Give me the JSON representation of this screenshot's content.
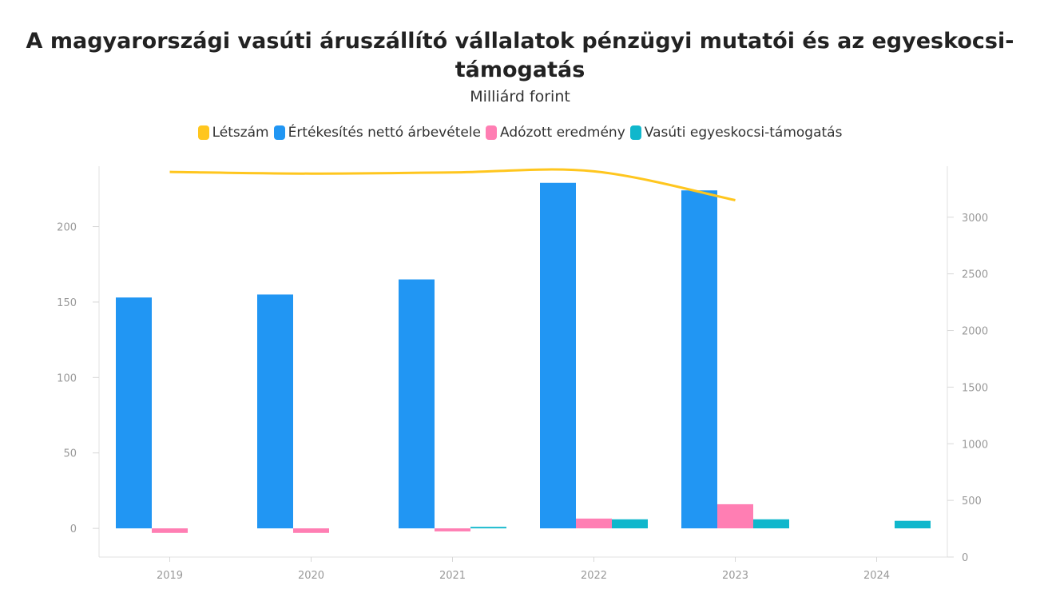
{
  "chart_data": {
    "type": "bar",
    "title": "A magyarországi vasúti áruszállító vállalatok pénzügyi mutatói és az egyeskocsi-támogatás",
    "subtitle": "Milliárd forint",
    "categories": [
      "2019",
      "2020",
      "2021",
      "2022",
      "2023",
      "2024"
    ],
    "series": [
      {
        "name": "Létszám",
        "kind": "line",
        "axis": "right",
        "color": "#FFC61E",
        "values": [
          3400,
          3385,
          3395,
          3405,
          3150,
          null
        ]
      },
      {
        "name": "Értékesítés nettó árbevétele",
        "kind": "bar",
        "axis": "left",
        "color": "#2196F3",
        "values": [
          153,
          155,
          165,
          229,
          224,
          null
        ]
      },
      {
        "name": "Adózott eredmény",
        "kind": "bar",
        "axis": "left",
        "color": "#FF7EB3",
        "values": [
          -3,
          -3,
          -2,
          6.5,
          16,
          null
        ]
      },
      {
        "name": "Vasúti egyeskocsi-támogatás",
        "kind": "bar",
        "axis": "left",
        "color": "#10B7CC",
        "values": [
          null,
          null,
          1,
          6,
          6,
          5
        ]
      }
    ],
    "yAxisLeft": {
      "ticks": [
        0,
        50,
        100,
        150,
        200
      ],
      "range": [
        -19,
        240
      ]
    },
    "yAxisRight": {
      "ticks": [
        0,
        500,
        1000,
        1500,
        2000,
        2500,
        3000
      ],
      "range": [
        0,
        3450
      ]
    },
    "grid": false,
    "legend": "top-center"
  }
}
